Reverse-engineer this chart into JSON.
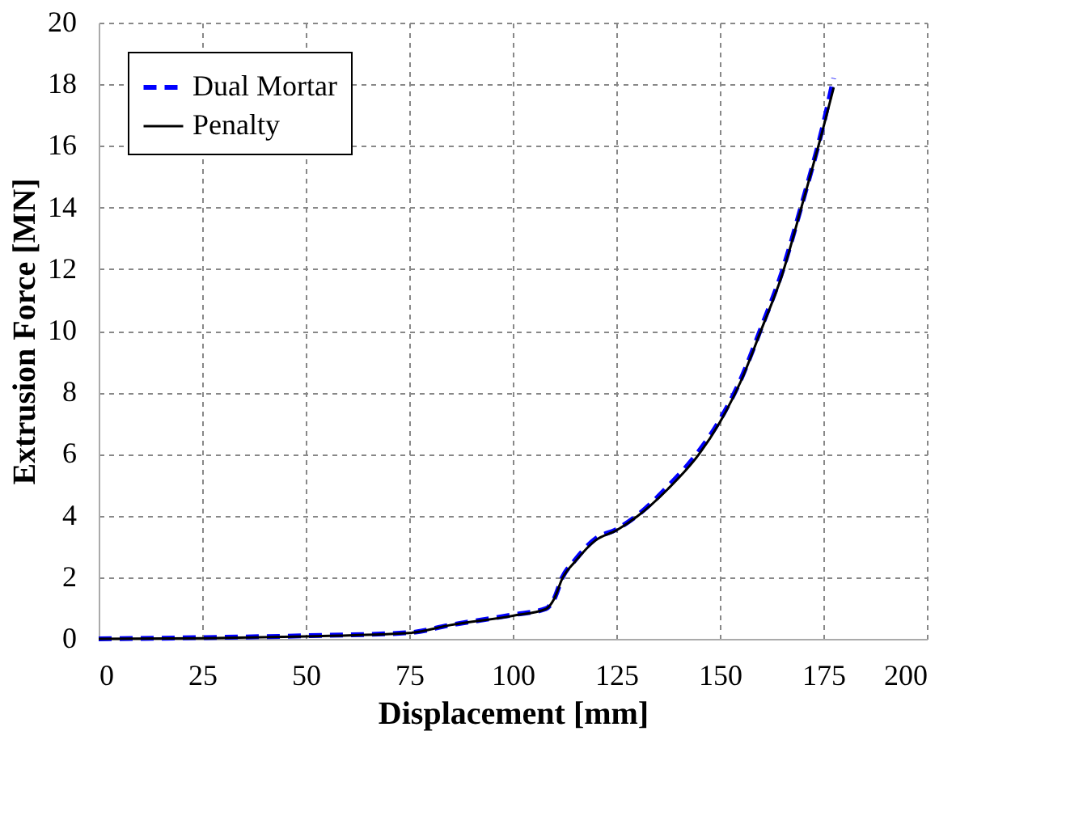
{
  "chart_data": {
    "type": "line",
    "xlabel": "Displacement [mm]",
    "ylabel": "Extrusion Force  [MN]",
    "xlim": [
      0,
      200
    ],
    "xticks": [
      0,
      25,
      50,
      75,
      100,
      125,
      150,
      175,
      200
    ],
    "ylim": [
      0,
      20
    ],
    "yticks": [
      0,
      2,
      4,
      6,
      8,
      10,
      12,
      14,
      16,
      18,
      20
    ],
    "grid": true,
    "legend": "top left",
    "series": [
      {
        "name": "Dual Mortar",
        "color": "#0000ff",
        "line_style": "dashed",
        "x": [
          0,
          25,
          50,
          75,
          85,
          100,
          108,
          110,
          112,
          115,
          120,
          125,
          130,
          137.5,
          145,
          150,
          155,
          160,
          165,
          170,
          175,
          177.5
        ],
        "values": [
          0,
          0.04,
          0.1,
          0.2,
          0.45,
          0.78,
          0.98,
          1.3,
          2.0,
          2.55,
          3.25,
          3.55,
          4.0,
          4.95,
          6.1,
          7.1,
          8.4,
          10.1,
          11.9,
          14.2,
          16.7,
          18.2
        ]
      },
      {
        "name": "Penalty",
        "color": "#000000",
        "line_style": "solid",
        "x": [
          0,
          25,
          50,
          75,
          85,
          100,
          108,
          110,
          112,
          115,
          120,
          125,
          130,
          137.5,
          145,
          150,
          155,
          160,
          165,
          170,
          175,
          177.5
        ],
        "values": [
          0,
          0.02,
          0.08,
          0.19,
          0.45,
          0.75,
          0.97,
          1.3,
          1.97,
          2.5,
          3.2,
          3.52,
          3.97,
          4.87,
          6.0,
          7.03,
          8.34,
          10.03,
          11.8,
          14.15,
          16.6,
          17.9
        ]
      }
    ]
  }
}
